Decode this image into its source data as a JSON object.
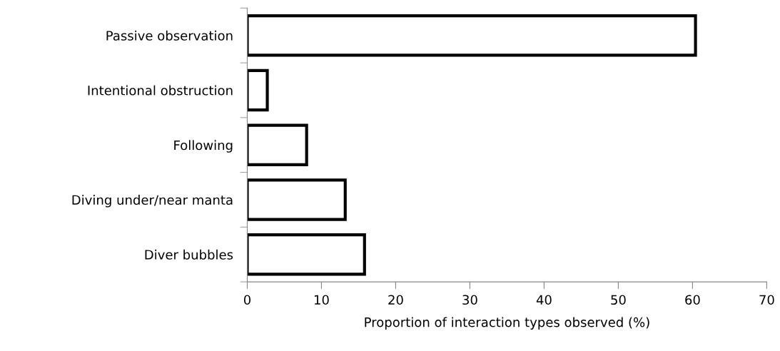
{
  "chart_data": {
    "type": "bar",
    "orientation": "horizontal",
    "categories": [
      "Passive observation",
      "Intentional obstruction",
      "Following",
      "Diving under/near manta",
      "Diver bubbles"
    ],
    "values": [
      60.4,
      2.7,
      8.0,
      13.2,
      15.8
    ],
    "color": "#ffffff",
    "xlabel": "Proportion of interaction types observed (%)",
    "xlim": [
      0,
      70
    ],
    "xticks": [
      0,
      10,
      20,
      30,
      40,
      50,
      60,
      70
    ],
    "grid": false,
    "legend": false
  }
}
